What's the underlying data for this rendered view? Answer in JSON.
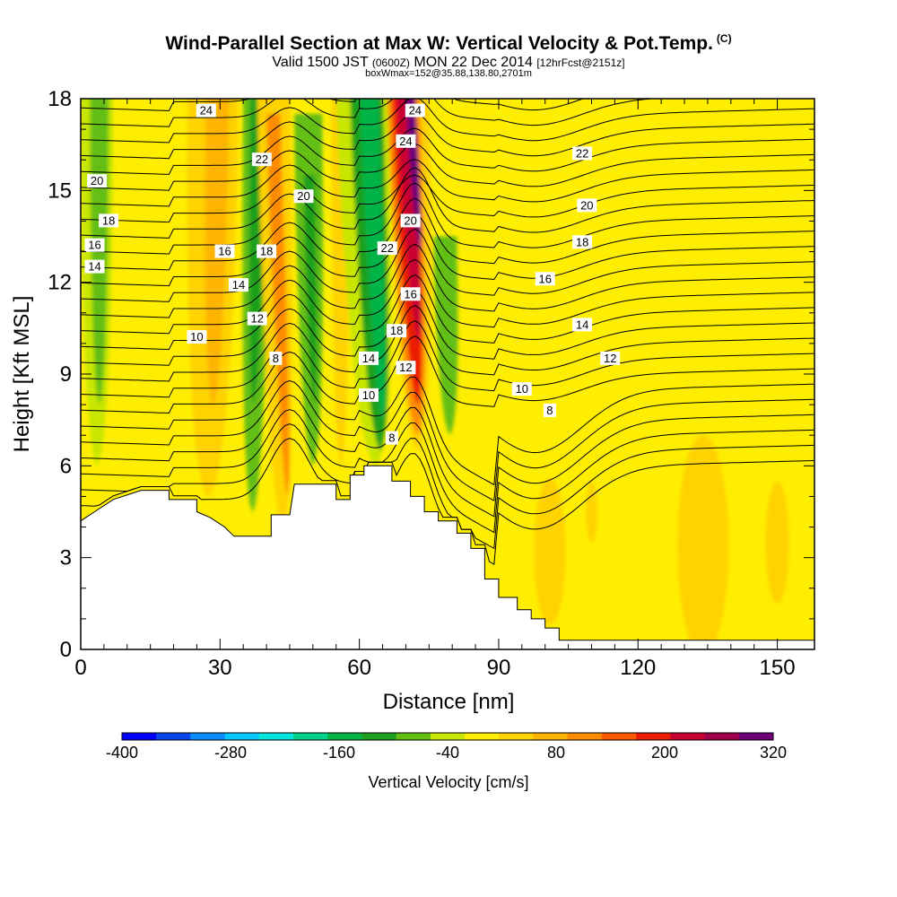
{
  "header": {
    "title": "Wind-Parallel Section at Max W: Vertical Velocity & Pot.Temp.",
    "copyright": "(C)",
    "valid_prefix": "Valid 1500 JST",
    "valid_utc": "(0600Z)",
    "valid_date": "MON 22 Dec 2014",
    "forecast": "[12hrFcst@2151z]",
    "box_info": "boxWmax=152@35.88,138.80,2701m"
  },
  "chart_data": {
    "type": "heatmap",
    "title": "Wind-Parallel Section at Max W: Vertical Velocity & Pot.Temp.",
    "xlabel": "Distance [nm]",
    "ylabel": "Height [Kft MSL]",
    "xlim": [
      0,
      158
    ],
    "ylim": [
      0,
      18
    ],
    "x_ticks": [
      0,
      30,
      60,
      90,
      120,
      150
    ],
    "y_ticks": [
      0,
      3,
      6,
      9,
      12,
      15,
      18
    ],
    "colorbar": {
      "label": "Vertical Velocity [cm/s]",
      "tick_labels": [
        "-400",
        "-280",
        "-160",
        "-40",
        "80",
        "200",
        "320"
      ],
      "levels": [
        -400,
        -360,
        -320,
        -280,
        -240,
        -200,
        -160,
        -120,
        -80,
        -40,
        0,
        40,
        80,
        120,
        160,
        200,
        240,
        280,
        320
      ],
      "colors": [
        "#0000ff",
        "#0a46f0",
        "#0a8cff",
        "#00c8ff",
        "#00e6dc",
        "#00d28c",
        "#00b446",
        "#1ea01e",
        "#64be14",
        "#c8e600",
        "#ffee00",
        "#ffd200",
        "#ffb400",
        "#ff8c00",
        "#ff5a00",
        "#eb1e00",
        "#c80032",
        "#a0004b",
        "#6e0078"
      ]
    },
    "terrain_top_kft": [
      [
        0,
        4.2
      ],
      [
        3,
        4.5
      ],
      [
        7,
        4.9
      ],
      [
        13,
        5.2
      ],
      [
        19,
        5.2
      ],
      [
        19,
        4.9
      ],
      [
        25,
        4.9
      ],
      [
        25,
        4.5
      ],
      [
        28,
        4.3
      ],
      [
        31,
        4.0
      ],
      [
        33,
        3.7
      ],
      [
        41,
        3.7
      ],
      [
        41,
        4.4
      ],
      [
        45,
        4.4
      ],
      [
        46,
        5.4
      ],
      [
        52,
        5.4
      ],
      [
        55,
        5.4
      ],
      [
        55,
        4.9
      ],
      [
        58,
        4.9
      ],
      [
        58,
        5.7
      ],
      [
        61,
        5.7
      ],
      [
        61,
        6.0
      ],
      [
        67,
        6.0
      ],
      [
        67,
        5.5
      ],
      [
        71,
        5.5
      ],
      [
        71,
        5.0
      ],
      [
        74,
        5.0
      ],
      [
        74,
        4.5
      ],
      [
        77,
        4.5
      ],
      [
        77,
        4.2
      ],
      [
        81,
        4.2
      ],
      [
        81,
        3.8
      ],
      [
        84,
        3.8
      ],
      [
        84,
        3.3
      ],
      [
        87,
        3.3
      ],
      [
        87,
        2.3
      ],
      [
        90,
        2.3
      ],
      [
        90,
        1.7
      ],
      [
        94,
        1.7
      ],
      [
        94,
        1.3
      ],
      [
        97,
        1.3
      ],
      [
        97,
        1.0
      ],
      [
        100,
        1.0
      ],
      [
        100,
        0.7
      ],
      [
        103,
        0.7
      ],
      [
        103,
        0.3
      ],
      [
        158,
        0.3
      ]
    ],
    "velocity_features": [
      {
        "type": "updraft_core",
        "x_center": 72,
        "x_range": [
          69,
          76
        ],
        "z_range_kft": [
          7.0,
          18.0
        ],
        "max_w_cm_s": 320
      },
      {
        "type": "downdraft_band",
        "x_range": [
          59,
          68
        ],
        "z_range_kft": [
          6.0,
          18.0
        ],
        "min_w_cm_s": -160
      },
      {
        "type": "downdraft_band",
        "x_range": [
          35,
          40
        ],
        "z_range_kft": [
          4.0,
          18.0
        ],
        "min_w_cm_s": -120
      },
      {
        "type": "downdraft_band",
        "x_range": [
          47,
          52
        ],
        "z_range_kft": [
          5.5,
          17.0
        ],
        "min_w_cm_s": -80
      },
      {
        "type": "downdraft_band",
        "x_range": [
          1,
          6
        ],
        "z_range_kft": [
          8.0,
          18.0
        ],
        "min_w_cm_s": -80
      },
      {
        "type": "updraft_band",
        "x_range": [
          24,
          31
        ],
        "z_range_kft": [
          4.5,
          18.0
        ],
        "max_w_cm_s": 80
      },
      {
        "type": "updraft_band",
        "x_range": [
          41,
          46
        ],
        "z_range_kft": [
          4.0,
          18.0
        ],
        "max_w_cm_s": 120
      },
      {
        "type": "updraft_area",
        "x_range": [
          93,
          145
        ],
        "z_range_kft": [
          0.5,
          15.0
        ],
        "max_w_cm_s": 80
      }
    ],
    "pot_temp_contours": {
      "units": "C",
      "interval": 1,
      "labels": [
        {
          "text": "24",
          "x": 27,
          "z": 17.6
        },
        {
          "text": "22",
          "x": 39,
          "z": 16.0
        },
        {
          "text": "20",
          "x": 48,
          "z": 14.8
        },
        {
          "text": "20",
          "x": 3.5,
          "z": 15.3
        },
        {
          "text": "18",
          "x": 6,
          "z": 14.0
        },
        {
          "text": "16",
          "x": 3,
          "z": 13.2
        },
        {
          "text": "14",
          "x": 3,
          "z": 12.5
        },
        {
          "text": "16",
          "x": 31,
          "z": 13.0
        },
        {
          "text": "18",
          "x": 40,
          "z": 13.0
        },
        {
          "text": "14",
          "x": 34,
          "z": 11.9
        },
        {
          "text": "12",
          "x": 38,
          "z": 10.8
        },
        {
          "text": "10",
          "x": 25,
          "z": 10.2
        },
        {
          "text": "8",
          "x": 42,
          "z": 9.5
        },
        {
          "text": "24",
          "x": 72,
          "z": 17.6
        },
        {
          "text": "24",
          "x": 70,
          "z": 16.6
        },
        {
          "text": "20",
          "x": 71,
          "z": 14.0
        },
        {
          "text": "22",
          "x": 66,
          "z": 13.1
        },
        {
          "text": "16",
          "x": 71,
          "z": 11.6
        },
        {
          "text": "18",
          "x": 68,
          "z": 10.4
        },
        {
          "text": "14",
          "x": 62,
          "z": 9.5
        },
        {
          "text": "12",
          "x": 70,
          "z": 9.2
        },
        {
          "text": "10",
          "x": 62,
          "z": 8.3
        },
        {
          "text": "8",
          "x": 67,
          "z": 6.9
        },
        {
          "text": "22",
          "x": 108,
          "z": 16.2
        },
        {
          "text": "20",
          "x": 109,
          "z": 14.5
        },
        {
          "text": "18",
          "x": 108,
          "z": 13.3
        },
        {
          "text": "16",
          "x": 100,
          "z": 12.1
        },
        {
          "text": "14",
          "x": 108,
          "z": 10.6
        },
        {
          "text": "12",
          "x": 114,
          "z": 9.5
        },
        {
          "text": "10",
          "x": 95,
          "z": 8.5
        },
        {
          "text": "8",
          "x": 101,
          "z": 7.8
        }
      ]
    }
  }
}
